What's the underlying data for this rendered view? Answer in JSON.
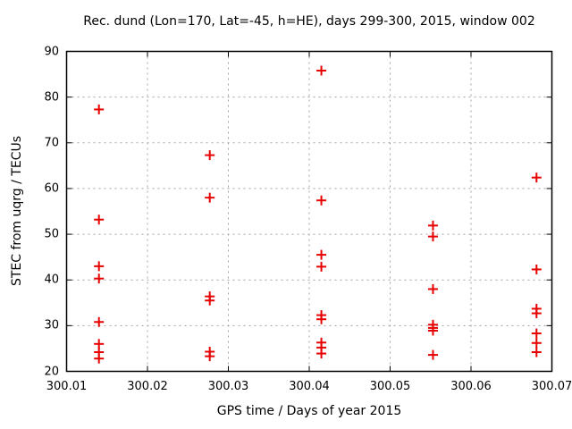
{
  "title": "Rec. dund (Lon=170, Lat=-45, h=HE), days 299-300, 2015, window 002",
  "chart_data": {
    "type": "scatter",
    "title": "Rec. dund (Lon=170, Lat=-45, h=HE), days 299-300, 2015, window 002",
    "xlabel": "GPS time / Days of year 2015",
    "ylabel": "STEC from uqrg / TECUs",
    "xlim": [
      300.01,
      300.07
    ],
    "ylim": [
      20,
      90
    ],
    "x_ticks": [
      300.01,
      300.02,
      300.03,
      300.04,
      300.05,
      300.06,
      300.07
    ],
    "x_tick_labels": [
      "300.01",
      "300.02",
      "300.03",
      "300.04",
      "300.05",
      "300.06",
      "300.07"
    ],
    "y_ticks": [
      20,
      30,
      40,
      50,
      60,
      70,
      80,
      90
    ],
    "y_tick_labels": [
      "20",
      "30",
      "40",
      "50",
      "60",
      "70",
      "80",
      "90"
    ],
    "grid": true,
    "grid_color": "#a0a0a0",
    "border_color": "#000000",
    "marker": {
      "shape": "plus",
      "color": "#e60000",
      "size": 11
    },
    "series": [
      {
        "name": "STEC from uqrg",
        "points": [
          [
            300.014,
            77.3
          ],
          [
            300.014,
            53.2
          ],
          [
            300.014,
            43.0
          ],
          [
            300.014,
            40.3
          ],
          [
            300.014,
            30.8
          ],
          [
            300.014,
            26.0
          ],
          [
            300.014,
            24.2
          ],
          [
            300.014,
            22.8
          ],
          [
            300.0277,
            67.3
          ],
          [
            300.0277,
            58.0
          ],
          [
            300.0277,
            36.4
          ],
          [
            300.0277,
            35.5
          ],
          [
            300.0277,
            24.3
          ],
          [
            300.0277,
            23.3
          ],
          [
            300.0415,
            85.8
          ],
          [
            300.0415,
            57.4
          ],
          [
            300.0415,
            45.5
          ],
          [
            300.0415,
            42.9
          ],
          [
            300.0415,
            32.3
          ],
          [
            300.0415,
            31.4
          ],
          [
            300.0415,
            26.3
          ],
          [
            300.0415,
            25.2
          ],
          [
            300.0415,
            23.9
          ],
          [
            300.0553,
            51.9
          ],
          [
            300.0553,
            49.5
          ],
          [
            300.0553,
            38.0
          ],
          [
            300.0553,
            30.2
          ],
          [
            300.0553,
            29.5
          ],
          [
            300.0553,
            28.9
          ],
          [
            300.0553,
            23.6
          ],
          [
            300.0681,
            62.4
          ],
          [
            300.0681,
            42.3
          ],
          [
            300.0681,
            33.7
          ],
          [
            300.0681,
            32.7
          ],
          [
            300.0681,
            28.3
          ],
          [
            300.0681,
            26.2
          ],
          [
            300.0681,
            24.2
          ]
        ]
      }
    ]
  }
}
